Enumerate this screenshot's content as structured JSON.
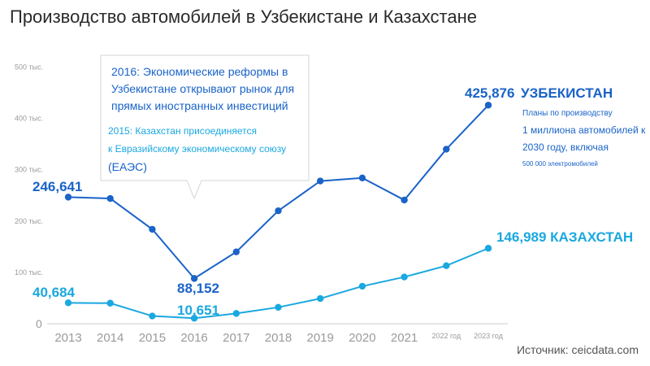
{
  "title": "Производство автомобилей в Узбекистане и Казахстане",
  "source": "Источник: ceicdata.com",
  "callout": {
    "line1": "2016: Экономические реформы в",
    "line2": "Узбекистане открывают рынок для",
    "line3": "прямых иностранных инвестиций",
    "line4": "2015: Казахстан присоединяется",
    "line5": "к Евразийскому экономическому союзу",
    "line6": "(ЕАЭС)"
  },
  "note": {
    "line1": "Планы по производству",
    "line2": "1 миллиона автомобилей к",
    "line3": "2030 году, включая",
    "line4": "500 000 электромобилей"
  },
  "colors": {
    "uzbekistan": "#1a63c8",
    "kazakhstan": "#1aa8e0",
    "axis_text": "#9a9a9a",
    "title": "#2a2a2a"
  },
  "chart_data": {
    "type": "line",
    "categories": [
      "2013",
      "2014",
      "2015",
      "2016",
      "2017",
      "2018",
      "2019",
      "2020",
      "2021",
      "2022 год",
      "2023 год"
    ],
    "ylim": [
      0,
      500000
    ],
    "yticks": [
      0,
      100000,
      200000,
      300000,
      400000,
      500000
    ],
    "ytick_labels": [
      "0",
      "100 тыс.",
      "200 тыс.",
      "300 тыс.",
      "400 тыс.",
      "500 тыс."
    ],
    "grid": false,
    "series": [
      {
        "name": "УЗБЕКИСТАН",
        "values": [
          246641,
          244000,
          184000,
          88152,
          140000,
          220000,
          278000,
          284000,
          241000,
          340000,
          425876
        ]
      },
      {
        "name": "КАЗАХСТАН",
        "values": [
          40684,
          40000,
          15000,
          10651,
          20000,
          32000,
          49000,
          73000,
          91000,
          113000,
          146989
        ]
      }
    ],
    "data_labels": {
      "uz_2013": "246,641",
      "uz_2016": "88,152",
      "uz_2023": "425,876",
      "kz_2013": "40,684",
      "kz_2016": "10,651",
      "kz_2023": "146,989"
    }
  }
}
